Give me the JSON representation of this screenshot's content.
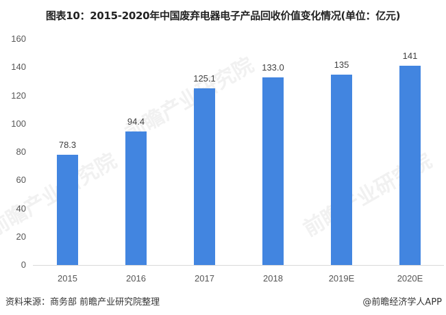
{
  "title": "图表10：2015-2020年中国废弃电器电子产品回收价值变化情况(单位：亿元)",
  "source": "资料来源：商务部 前瞻产业研究院整理",
  "credit": "@前瞻经济学人APP",
  "watermark": "前瞻产业研究院",
  "colors": {
    "bar": "#4285e0",
    "axis": "#d9d9d9"
  },
  "chart_data": {
    "type": "bar",
    "title": "图表10：2015-2020年中国废弃电器电子产品回收价值变化情况(单位：亿元)",
    "xlabel": "",
    "ylabel": "",
    "categories": [
      "2015",
      "2016",
      "2017",
      "2018",
      "2019E",
      "2020E"
    ],
    "values": [
      78.3,
      94.4,
      125.1,
      133.0,
      135,
      141
    ],
    "value_labels": [
      "78.3",
      "94.4",
      "125.1",
      "133.0",
      "135",
      "141"
    ],
    "ylim": [
      0,
      160
    ],
    "yticks": [
      "0",
      "20",
      "40",
      "60",
      "80",
      "100",
      "120",
      "140",
      "160"
    ],
    "grid": false,
    "legend": null
  }
}
